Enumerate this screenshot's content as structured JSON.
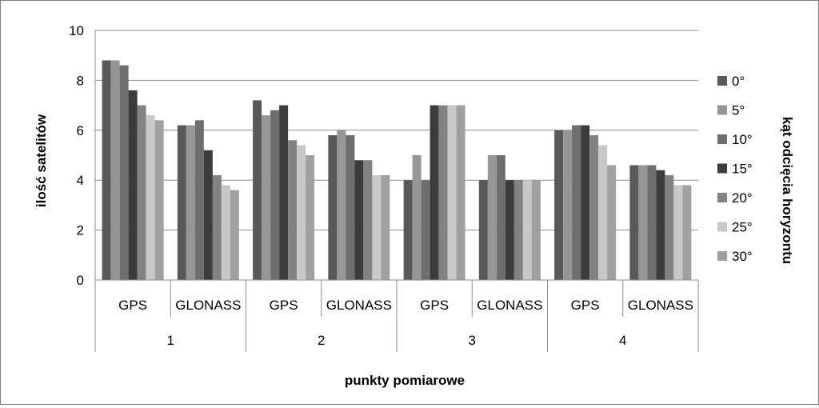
{
  "chart_data": {
    "type": "bar",
    "ylabel": "ilość satelitów",
    "xlabel": "punkty pomiarowe",
    "legend_title": "kąt odcięcia horyzontu",
    "legend_position": "right",
    "ylim": [
      0,
      10
    ],
    "yticks": [
      "0",
      "2",
      "4",
      "6",
      "8",
      "10"
    ],
    "grid": true,
    "groups": [
      "1",
      "2",
      "3",
      "4"
    ],
    "categories": [
      "GPS",
      "GLONASS",
      "GPS",
      "GLONASS",
      "GPS",
      "GLONASS",
      "GPS",
      "GLONASS"
    ],
    "series": [
      {
        "name": "0°",
        "color": "#595959",
        "values": [
          8.8,
          6.2,
          7.2,
          5.8,
          4.0,
          4.0,
          6.0,
          4.6
        ]
      },
      {
        "name": "5°",
        "color": "#969696",
        "values": [
          8.8,
          6.2,
          6.6,
          6.0,
          5.0,
          5.0,
          6.0,
          4.6
        ]
      },
      {
        "name": "10°",
        "color": "#6e6e6e",
        "values": [
          8.6,
          6.4,
          6.8,
          5.8,
          4.0,
          5.0,
          6.2,
          4.6
        ]
      },
      {
        "name": "15°",
        "color": "#3c3c3c",
        "values": [
          7.6,
          5.2,
          7.0,
          4.8,
          7.0,
          4.0,
          6.2,
          4.4
        ]
      },
      {
        "name": "20°",
        "color": "#828282",
        "values": [
          7.0,
          4.2,
          5.6,
          4.8,
          7.0,
          4.0,
          5.8,
          4.2
        ]
      },
      {
        "name": "25°",
        "color": "#c8c8c8",
        "values": [
          6.6,
          3.8,
          5.4,
          4.2,
          7.0,
          4.0,
          5.4,
          3.8
        ]
      },
      {
        "name": "30°",
        "color": "#a0a0a0",
        "values": [
          6.4,
          3.6,
          5.0,
          4.2,
          7.0,
          4.0,
          4.6,
          3.8
        ]
      }
    ]
  }
}
